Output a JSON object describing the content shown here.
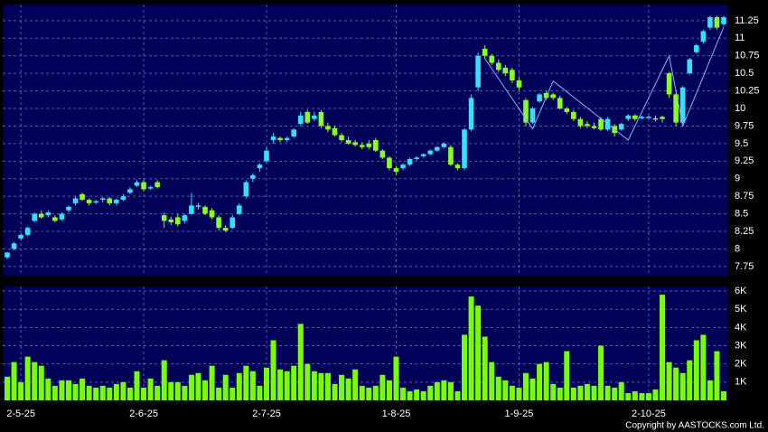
{
  "chart_data": {
    "type": "candlestick",
    "categories": [
      null,
      null,
      "2-5-25",
      null,
      null,
      null,
      null,
      null,
      null,
      null,
      null,
      null,
      null,
      null,
      null,
      null,
      null,
      null,
      null,
      null,
      "2-6-25",
      null,
      null,
      null,
      null,
      null,
      null,
      null,
      null,
      null,
      null,
      null,
      null,
      null,
      null,
      null,
      null,
      null,
      "2-7-25",
      null,
      null,
      null,
      null,
      null,
      null,
      null,
      null,
      null,
      null,
      null,
      null,
      null,
      null,
      null,
      null,
      null,
      null,
      "1-8-25",
      null,
      null,
      null,
      null,
      null,
      null,
      null,
      null,
      null,
      null,
      null,
      null,
      null,
      null,
      null,
      null,
      null,
      "1-9-25",
      null,
      null,
      null,
      null,
      null,
      null,
      null,
      null,
      null,
      null,
      null,
      null,
      null,
      null,
      null,
      null,
      null,
      null,
      "2-10-25",
      null,
      null,
      null,
      null,
      null,
      null,
      null,
      null,
      null,
      null,
      null
    ],
    "candles": [
      [
        7.88,
        7.95,
        7.85,
        7.95
      ],
      [
        8.0,
        8.1,
        7.98,
        8.08
      ],
      [
        8.15,
        8.22,
        8.12,
        8.2
      ],
      [
        8.2,
        8.32,
        8.18,
        8.3
      ],
      [
        8.4,
        8.52,
        8.38,
        8.5
      ],
      [
        8.5,
        8.55,
        8.43,
        8.45
      ],
      [
        8.48,
        8.55,
        8.45,
        8.52
      ],
      [
        8.45,
        8.48,
        8.38,
        8.4
      ],
      [
        8.42,
        8.52,
        8.4,
        8.5
      ],
      [
        8.55,
        8.62,
        8.52,
        8.6
      ],
      [
        8.65,
        8.75,
        8.62,
        8.72
      ],
      [
        8.78,
        8.8,
        8.68,
        8.7
      ],
      [
        8.7,
        8.72,
        8.62,
        8.65
      ],
      [
        8.66,
        8.7,
        8.64,
        8.68
      ],
      [
        8.7,
        8.74,
        8.66,
        8.72
      ],
      [
        8.72,
        8.74,
        8.62,
        8.65
      ],
      [
        8.65,
        8.72,
        8.62,
        8.7
      ],
      [
        8.7,
        8.78,
        8.68,
        8.75
      ],
      [
        8.8,
        8.88,
        8.78,
        8.85
      ],
      [
        8.9,
        8.98,
        8.88,
        8.95
      ],
      [
        8.95,
        8.98,
        8.82,
        8.85
      ],
      [
        8.86,
        8.9,
        8.84,
        8.88
      ],
      [
        8.95,
        8.98,
        8.86,
        8.88
      ],
      [
        8.48,
        8.52,
        8.3,
        8.4
      ],
      [
        8.42,
        8.46,
        8.34,
        8.38
      ],
      [
        8.45,
        8.5,
        8.32,
        8.35
      ],
      [
        8.4,
        8.5,
        8.36,
        8.48
      ],
      [
        8.5,
        8.8,
        8.48,
        8.62
      ],
      [
        8.6,
        8.66,
        8.56,
        8.62
      ],
      [
        8.6,
        8.62,
        8.48,
        8.5
      ],
      [
        8.55,
        8.58,
        8.42,
        8.45
      ],
      [
        8.45,
        8.48,
        8.26,
        8.3
      ],
      [
        8.3,
        8.34,
        8.24,
        8.26
      ],
      [
        8.3,
        8.48,
        8.28,
        8.45
      ],
      [
        8.5,
        8.65,
        8.48,
        8.62
      ],
      [
        8.75,
        8.98,
        8.72,
        8.95
      ],
      [
        9.0,
        9.08,
        8.95,
        9.05
      ],
      [
        9.15,
        9.22,
        9.1,
        9.2
      ],
      [
        9.25,
        9.45,
        9.22,
        9.4
      ],
      [
        9.55,
        9.65,
        9.5,
        9.6
      ],
      [
        9.58,
        9.6,
        9.52,
        9.55
      ],
      [
        9.55,
        9.6,
        9.52,
        9.58
      ],
      [
        9.6,
        9.72,
        9.58,
        9.7
      ],
      [
        9.78,
        9.95,
        9.75,
        9.9
      ],
      [
        9.95,
        9.98,
        9.78,
        9.8
      ],
      [
        9.85,
        9.95,
        9.82,
        9.9
      ],
      [
        9.95,
        9.98,
        9.72,
        9.75
      ],
      [
        9.75,
        9.8,
        9.66,
        9.7
      ],
      [
        9.72,
        9.75,
        9.6,
        9.62
      ],
      [
        9.62,
        9.65,
        9.52,
        9.55
      ],
      [
        9.55,
        9.6,
        9.48,
        9.5
      ],
      [
        9.52,
        9.55,
        9.46,
        9.48
      ],
      [
        9.48,
        9.52,
        9.42,
        9.45
      ],
      [
        9.5,
        9.55,
        9.42,
        9.45
      ],
      [
        9.55,
        9.58,
        9.38,
        9.4
      ],
      [
        9.4,
        9.42,
        9.28,
        9.3
      ],
      [
        9.3,
        9.32,
        9.12,
        9.15
      ],
      [
        9.15,
        9.18,
        9.05,
        9.1
      ],
      [
        9.15,
        9.22,
        9.12,
        9.2
      ],
      [
        9.2,
        9.3,
        9.18,
        9.28
      ],
      [
        9.28,
        9.32,
        9.26,
        9.3
      ],
      [
        9.32,
        9.36,
        9.3,
        9.35
      ],
      [
        9.35,
        9.42,
        9.33,
        9.4
      ],
      [
        9.4,
        9.46,
        9.38,
        9.45
      ],
      [
        9.45,
        9.52,
        9.43,
        9.5
      ],
      [
        9.45,
        9.48,
        9.18,
        9.2
      ],
      [
        9.2,
        9.22,
        9.12,
        9.15
      ],
      [
        9.15,
        9.72,
        9.12,
        9.7
      ],
      [
        9.7,
        10.2,
        9.68,
        10.15
      ],
      [
        10.3,
        10.8,
        10.25,
        10.75
      ],
      [
        10.85,
        10.9,
        10.7,
        10.75
      ],
      [
        10.75,
        10.78,
        10.62,
        10.65
      ],
      [
        10.65,
        10.7,
        10.52,
        10.55
      ],
      [
        10.58,
        10.62,
        10.46,
        10.5
      ],
      [
        10.55,
        10.58,
        10.36,
        10.4
      ],
      [
        10.4,
        10.44,
        10.26,
        10.3
      ],
      [
        10.12,
        10.15,
        9.75,
        9.8
      ],
      [
        9.8,
        10.02,
        9.78,
        10.0
      ],
      [
        10.1,
        10.22,
        10.08,
        10.2
      ],
      [
        10.22,
        10.25,
        10.12,
        10.15
      ],
      [
        10.2,
        10.22,
        10.12,
        10.15
      ],
      [
        10.15,
        10.18,
        9.98,
        10.0
      ],
      [
        10.0,
        10.02,
        9.92,
        9.95
      ],
      [
        9.95,
        9.98,
        9.82,
        9.85
      ],
      [
        9.85,
        9.88,
        9.72,
        9.75
      ],
      [
        9.78,
        9.82,
        9.72,
        9.75
      ],
      [
        9.75,
        9.8,
        9.7,
        9.72
      ],
      [
        9.85,
        9.88,
        9.68,
        9.7
      ],
      [
        9.7,
        9.88,
        9.68,
        9.85
      ],
      [
        9.75,
        9.78,
        9.6,
        9.65
      ],
      [
        9.7,
        9.8,
        9.68,
        9.78
      ],
      [
        9.85,
        9.92,
        9.82,
        9.9
      ],
      [
        9.9,
        9.92,
        9.82,
        9.85
      ],
      [
        9.86,
        9.9,
        9.84,
        9.88
      ],
      [
        9.88,
        9.9,
        9.86,
        9.88
      ],
      [
        9.86,
        9.9,
        9.82,
        9.85
      ],
      [
        9.88,
        9.9,
        9.8,
        9.85
      ],
      [
        10.5,
        10.52,
        10.15,
        10.2
      ],
      [
        10.2,
        10.22,
        9.75,
        9.8
      ],
      [
        9.8,
        10.32,
        9.78,
        10.3
      ],
      [
        10.5,
        10.72,
        10.48,
        10.7
      ],
      [
        10.8,
        10.92,
        10.78,
        10.9
      ],
      [
        10.95,
        11.12,
        10.92,
        11.1
      ],
      [
        11.15,
        11.32,
        11.12,
        11.3
      ],
      [
        11.3,
        11.32,
        11.12,
        11.15
      ],
      [
        11.2,
        11.32,
        11.18,
        11.3
      ]
    ],
    "up_color": "#33e0ff",
    "down_color": "#88ff22",
    "ylim": [
      7.62,
      11.48
    ],
    "yticks": [
      7.75,
      8,
      8.25,
      8.5,
      8.75,
      9,
      9.25,
      9.5,
      9.75,
      10,
      10.25,
      10.5,
      10.75,
      11,
      11.25
    ],
    "grid": true,
    "trend_line": {
      "color": "#7ab8ff",
      "x": [
        70,
        77,
        80,
        91,
        97,
        99,
        105
      ],
      "values": [
        10.71,
        9.71,
        10.39,
        9.55,
        10.75,
        9.75,
        11.16
      ]
    },
    "volume": {
      "color": "#77ff00",
      "values": [
        1300,
        2100,
        1000,
        2400,
        2100,
        1900,
        1200,
        800,
        1100,
        1100,
        900,
        1200,
        800,
        700,
        800,
        700,
        900,
        1000,
        700,
        1600,
        700,
        1200,
        800,
        2200,
        1000,
        1000,
        800,
        1400,
        1500,
        1100,
        1900,
        700,
        1400,
        700,
        1500,
        1900,
        1600,
        800,
        1800,
        3300,
        1700,
        1600,
        1900,
        4200,
        2000,
        1600,
        1500,
        1500,
        900,
        1400,
        1200,
        1700,
        800,
        700,
        800,
        1400,
        1100,
        2400,
        700,
        500,
        600,
        500,
        800,
        1000,
        1100,
        1000,
        500,
        3600,
        5700,
        5200,
        3500,
        2100,
        1300,
        1100,
        800,
        700,
        1500,
        1200,
        2000,
        2100,
        900,
        700,
        2700,
        700,
        800,
        900,
        800,
        3000,
        800,
        700,
        1000,
        400,
        500,
        400,
        400,
        600,
        5800,
        2100,
        1800,
        1500,
        2200,
        3300,
        3600,
        1100,
        2700,
        500
      ],
      "ylim": [
        0,
        6250
      ],
      "yticks": [
        {
          "value": 1000,
          "label": "1K"
        },
        {
          "value": 2000,
          "label": "2K"
        },
        {
          "value": 3000,
          "label": "3K"
        },
        {
          "value": 4000,
          "label": "4K"
        },
        {
          "value": 5000,
          "label": "5K"
        },
        {
          "value": 6000,
          "label": "6K"
        }
      ]
    },
    "copyright": "Copyright by AASTOCKS.com Ltd."
  }
}
